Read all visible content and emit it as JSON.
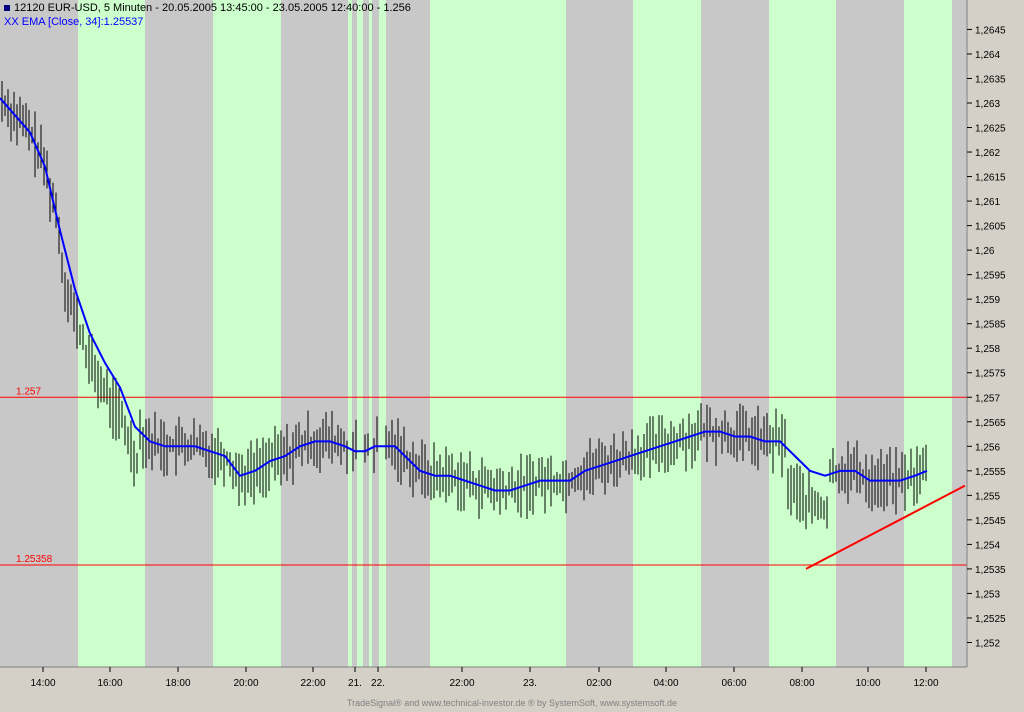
{
  "header": {
    "title": "12120  EUR-USD, 5 Minuten - 20.05.2005 13:45:00 - 23.05.2005 12:40:00 - 1.256",
    "ema_label": "XX EMA [Close, 34]:1.25537"
  },
  "footer": {
    "text": "TradeSignal® and www.technical-investor.de ® by  SystemSoft, www.systemsoft.de"
  },
  "colors": {
    "session_active": "#ccffcc",
    "session_closed": "#c8c8c8",
    "ema": "#0000ff",
    "price_bars": "#000000",
    "level_lines": "#ff0000",
    "trendline": "#ff0000"
  },
  "chart_data": {
    "type": "ohlc",
    "ylim": [
      1.2515,
      1.2651
    ],
    "y_ticks": [
      "1,2645",
      "1,264",
      "1,2635",
      "1,263",
      "1,2625",
      "1,262",
      "1,2615",
      "1,261",
      "1,2605",
      "1,26",
      "1,2595",
      "1,259",
      "1,2585",
      "1,258",
      "1,2575",
      "1,257",
      "1,2565",
      "1,256",
      "1,2555",
      "1,255",
      "1,2545",
      "1,254",
      "1,2535",
      "1,253",
      "1,2525",
      "1,252"
    ],
    "x_labels": [
      "14:00",
      "16:00",
      "18:00",
      "20:00",
      "22:00",
      "21.",
      "22.",
      "22:00",
      "23.",
      "02:00",
      "04:00",
      "06:00",
      "08:00",
      "10:00",
      "12:00"
    ],
    "horizontal_levels": [
      {
        "value": 1.257,
        "label": "1.257"
      },
      {
        "value": 1.25358,
        "label": "1.25358"
      }
    ],
    "trendline": {
      "from": {
        "time": "23.05 08:10",
        "price": 1.2535
      },
      "to": {
        "time": "23.05 13:15",
        "price": 1.2553
      }
    },
    "series": [
      {
        "name": "EMA [Close, 34]",
        "values": [
          [
            0,
            1.2631
          ],
          [
            30,
            1.2624
          ],
          [
            45,
            1.2617
          ],
          [
            60,
            1.2604
          ],
          [
            75,
            1.2592
          ],
          [
            90,
            1.2583
          ],
          [
            105,
            1.2577
          ],
          [
            120,
            1.2572
          ],
          [
            135,
            1.2564
          ],
          [
            150,
            1.2561
          ],
          [
            165,
            1.256
          ],
          [
            180,
            1.256
          ],
          [
            195,
            1.256
          ],
          [
            210,
            1.2559
          ],
          [
            225,
            1.2558
          ],
          [
            240,
            1.2554
          ],
          [
            255,
            1.2555
          ],
          [
            270,
            1.2557
          ],
          [
            285,
            1.2558
          ],
          [
            300,
            1.256
          ],
          [
            315,
            1.2561
          ],
          [
            330,
            1.2561
          ],
          [
            345,
            1.256
          ],
          [
            355,
            1.2559
          ],
          [
            365,
            1.2559
          ],
          [
            375,
            1.256
          ],
          [
            385,
            1.256
          ],
          [
            395,
            1.256
          ],
          [
            405,
            1.2558
          ],
          [
            420,
            1.2555
          ],
          [
            435,
            1.2554
          ],
          [
            450,
            1.2554
          ],
          [
            465,
            1.2553
          ],
          [
            480,
            1.2552
          ],
          [
            495,
            1.2551
          ],
          [
            510,
            1.2551
          ],
          [
            525,
            1.2552
          ],
          [
            540,
            1.2553
          ],
          [
            555,
            1.2553
          ],
          [
            570,
            1.2553
          ],
          [
            585,
            1.2555
          ],
          [
            600,
            1.2556
          ],
          [
            615,
            1.2557
          ],
          [
            630,
            1.2558
          ],
          [
            645,
            1.2559
          ],
          [
            660,
            1.256
          ],
          [
            675,
            1.2561
          ],
          [
            690,
            1.2562
          ],
          [
            705,
            1.2563
          ],
          [
            720,
            1.2563
          ],
          [
            735,
            1.2562
          ],
          [
            750,
            1.2562
          ],
          [
            765,
            1.2561
          ],
          [
            780,
            1.2561
          ],
          [
            795,
            1.2558
          ],
          [
            810,
            1.2555
          ],
          [
            825,
            1.2554
          ],
          [
            840,
            1.2555
          ],
          [
            855,
            1.2555
          ],
          [
            870,
            1.2553
          ],
          [
            885,
            1.2553
          ],
          [
            900,
            1.2553
          ],
          [
            915,
            1.2554
          ],
          [
            927,
            1.2555
          ]
        ]
      }
    ]
  }
}
